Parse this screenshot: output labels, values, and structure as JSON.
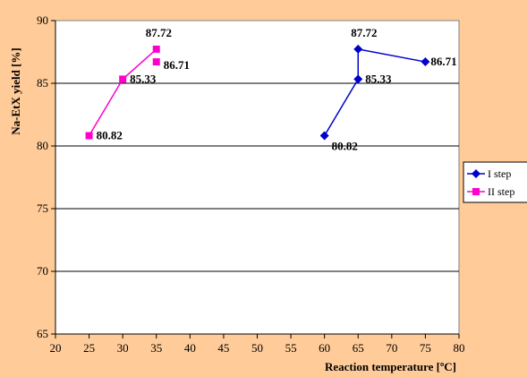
{
  "chart_data": {
    "type": "scatter",
    "title": "",
    "xlabel": "Reaction temperature [ºC]",
    "ylabel": "Na-EtX yield [%]",
    "xlim": [
      20,
      80
    ],
    "ylim": [
      65,
      90
    ],
    "xticks": [
      20,
      25,
      30,
      35,
      40,
      45,
      50,
      55,
      60,
      65,
      70,
      75,
      80
    ],
    "yticks": [
      65,
      70,
      75,
      80,
      85,
      90
    ],
    "grid": "horizontal",
    "legend_position": "right",
    "colors": {
      "background": "#FFCC99",
      "plot_area": "#FFFFFF",
      "grid": "#000000"
    },
    "series": [
      {
        "name": "I step",
        "color": "#0000CC",
        "marker": "diamond",
        "points": [
          {
            "x": 60,
            "y": 80.82,
            "label": "80.82"
          },
          {
            "x": 65,
            "y": 85.33,
            "label": "85.33"
          },
          {
            "x": 65,
            "y": 87.72,
            "label": "87.72"
          },
          {
            "x": 75,
            "y": 86.71,
            "label": "86.71"
          }
        ]
      },
      {
        "name": "II step",
        "color": "#FF00CC",
        "marker": "square",
        "points": [
          {
            "x": 25,
            "y": 80.82,
            "label": "80.82"
          },
          {
            "x": 30,
            "y": 85.33,
            "label": "85.33"
          },
          {
            "x": 35,
            "y": 87.72,
            "label": "87.72"
          },
          {
            "x": 35,
            "y": 86.71,
            "label": "86.71"
          }
        ],
        "line_points": [
          0,
          1,
          2
        ]
      }
    ]
  }
}
